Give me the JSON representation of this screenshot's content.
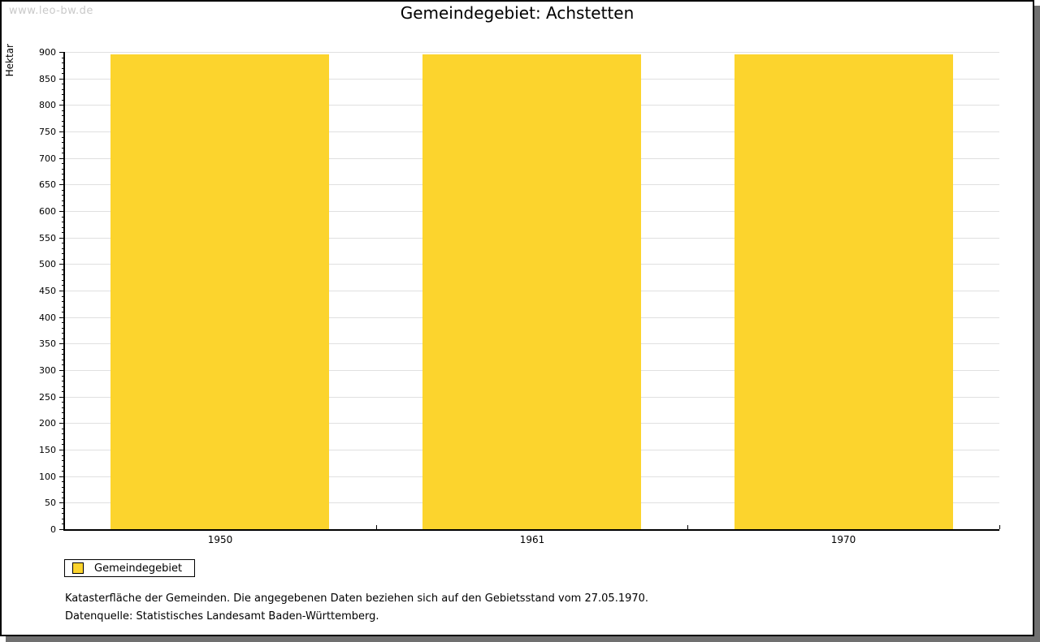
{
  "watermark": "www.leo-bw.de",
  "title": "Gemeindegebiet: Achstetten",
  "chart_data": {
    "type": "bar",
    "title": "Gemeindegebiet: Achstetten",
    "categories": [
      "1950",
      "1961",
      "1970"
    ],
    "series": [
      {
        "name": "Gemeindegebiet",
        "values": [
          895,
          895,
          895
        ]
      }
    ],
    "xlabel": "",
    "ylabel": "Hektar",
    "ylim": [
      0,
      900
    ],
    "y_major_step": 50,
    "y_minor_step": 10,
    "grid": true,
    "legend_position": "bottom-left",
    "bar_color": "#fcd42d"
  },
  "legend": {
    "items": [
      {
        "label": "Gemeindegebiet",
        "color": "#fcd42d"
      }
    ]
  },
  "footnotes": [
    "Katasterfläche der Gemeinden. Die angegebenen Daten beziehen sich auf den Gebietsstand vom 27.05.1970.",
    "Datenquelle: Statistisches Landesamt Baden-Württemberg."
  ],
  "colors": {
    "bar": "#fcd42d",
    "grid": "#e0e0e0",
    "axis": "#000000",
    "watermark": "#c9c9c9",
    "panel_border": "#000000",
    "panel_shadow": "#707070",
    "background": "#ffffff"
  }
}
